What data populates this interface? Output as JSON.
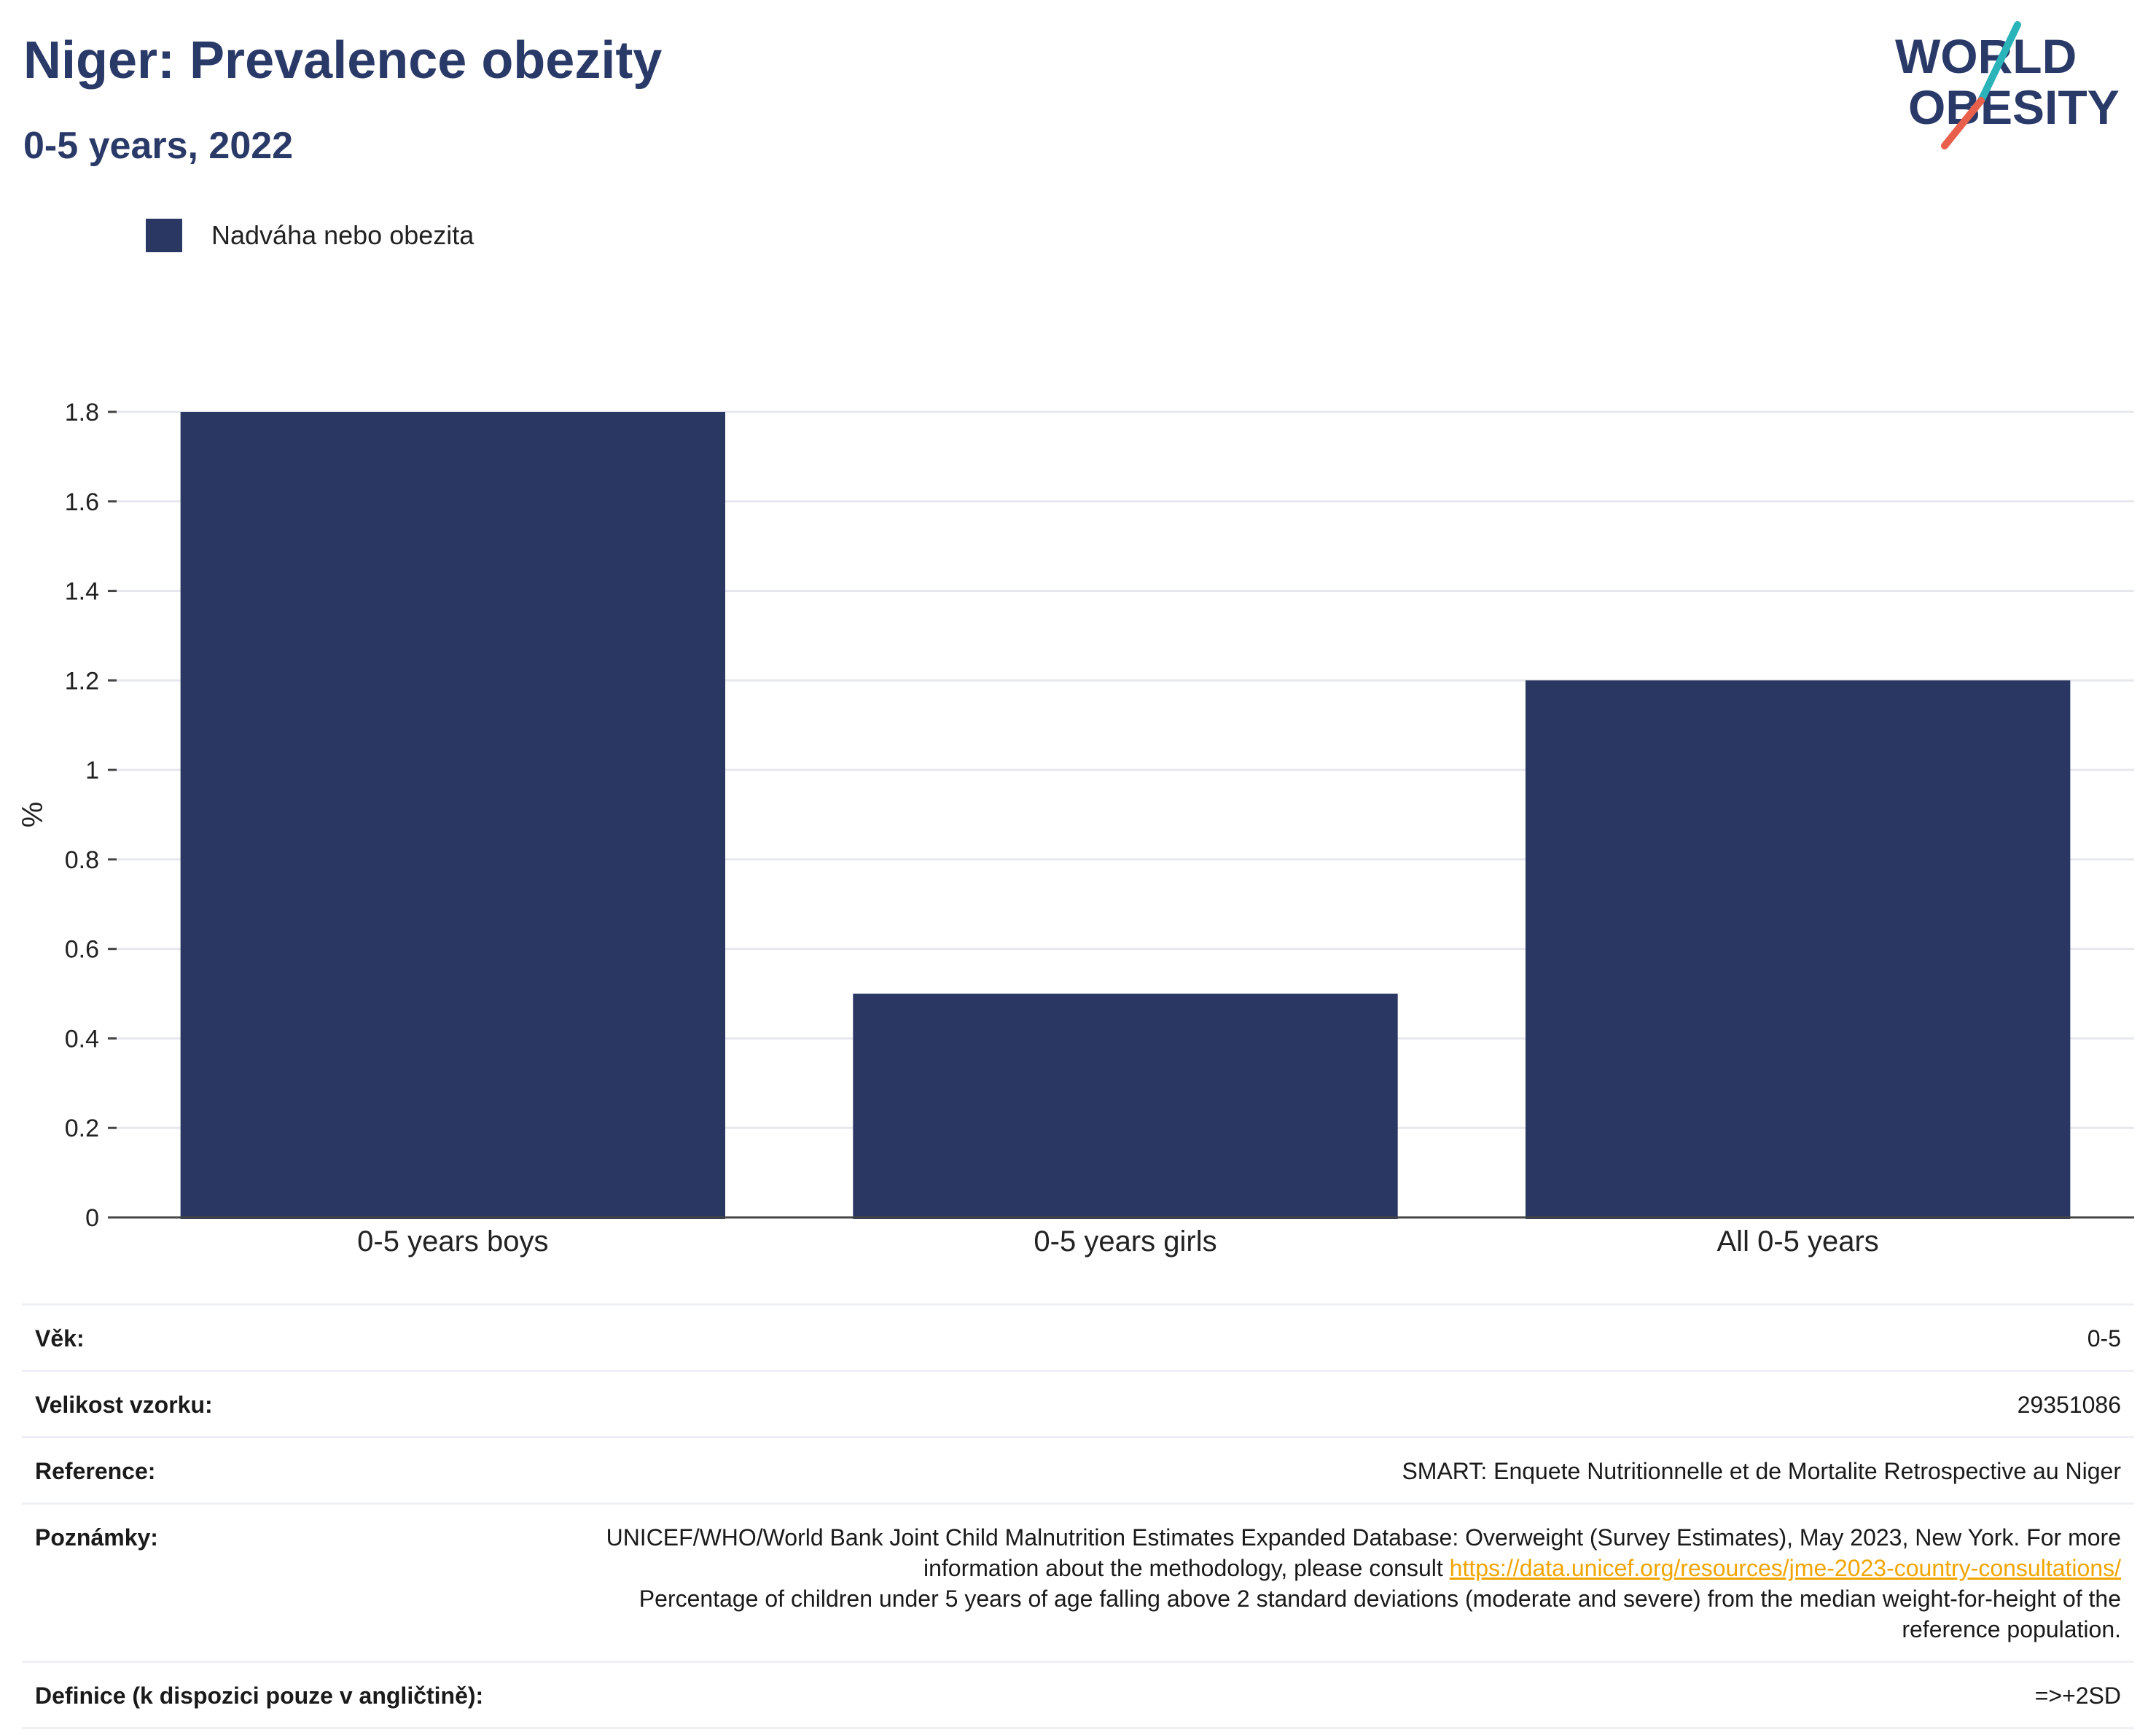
{
  "header": {
    "title": "Niger: Prevalence obezity",
    "subtitle": "0-5 years, 2022"
  },
  "logo": {
    "line1": "WORLD",
    "line2": "OBESITY",
    "colors": {
      "text": "#2a3a68",
      "slash_top": "#2ab3b8",
      "slash_bottom": "#e8604c"
    }
  },
  "legend": {
    "label": "Nadváha nebo obezita",
    "color": "#2a3762"
  },
  "chart_data": {
    "type": "bar",
    "categories": [
      "0-5 years boys",
      "0-5 years girls",
      "All 0-5 years"
    ],
    "series": [
      {
        "name": "Nadváha nebo obezita",
        "values": [
          1.8,
          0.5,
          1.2
        ],
        "color": "#2a3762"
      }
    ],
    "ylabel": "%",
    "xlabel": "",
    "ylim": [
      0,
      1.8
    ],
    "yticks": [
      "0",
      "0.2",
      "0.4",
      "0.6",
      "0.8",
      "1",
      "1.2",
      "1.4",
      "1.6",
      "1.8"
    ],
    "grid": true,
    "legend_position": "top-left"
  },
  "info": {
    "age_label": "Věk:",
    "age_value": "0-5",
    "sample_label": "Velikost vzorku:",
    "sample_value": "29351086",
    "reference_label": "Reference:",
    "reference_value": "SMART: Enquete Nutritionnelle et de Mortalite Retrospective au Niger",
    "notes_label": "Poznámky:",
    "notes_text_1": "UNICEF/WHO/World Bank Joint Child Malnutrition Estimates Expanded Database: Overweight (Survey Estimates), May 2023, New York. For more information about the methodology, please consult ",
    "notes_link": "https://data.unicef.org/resources/jme-2023-country-consultations/",
    "notes_text_2": "Percentage of children under 5 years of age falling above 2 standard deviations (moderate and severe) from the median weight-for-height of the reference population.",
    "definition_label": "Definice (k dispozici pouze v angličtině):",
    "definition_value": "=>+2SD"
  }
}
